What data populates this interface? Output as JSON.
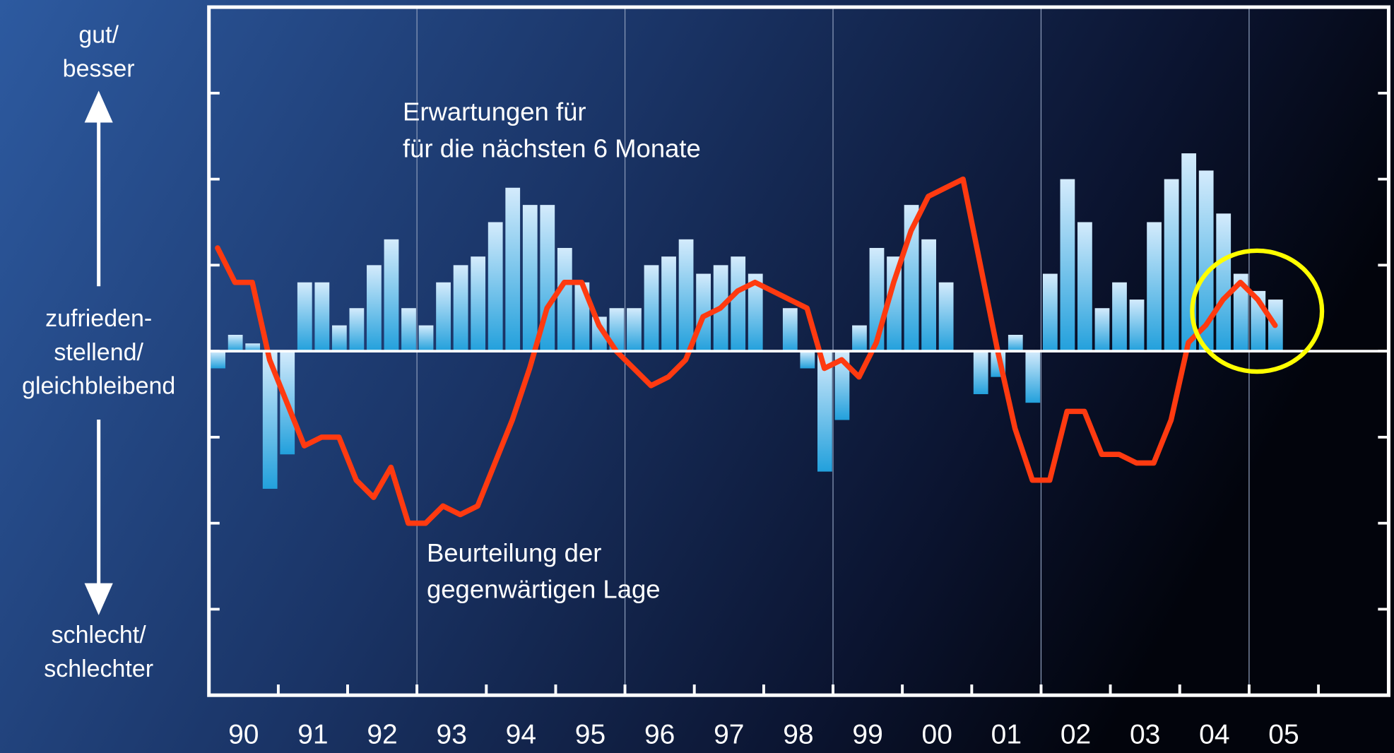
{
  "chart_data": {
    "type": "bar-line",
    "left_labels": {
      "top": [
        "gut/",
        "besser"
      ],
      "middle": [
        "zufrieden-",
        "stellend/",
        "gleichbleibend"
      ],
      "bottom": [
        "schlecht/",
        "schlechter"
      ]
    },
    "annotations": [
      {
        "lines": [
          "Erwartungen für",
          "für die nächsten 6 Monate"
        ]
      },
      {
        "lines": [
          "Beurteilung der",
          "gegenwärtigen Lage"
        ]
      }
    ],
    "categories": [
      "90",
      null,
      null,
      null,
      "91",
      null,
      null,
      null,
      "92",
      null,
      null,
      null,
      "93",
      null,
      null,
      null,
      "94",
      null,
      null,
      null,
      "95",
      null,
      null,
      null,
      "96",
      null,
      null,
      null,
      "97",
      null,
      null,
      null,
      "98",
      null,
      null,
      null,
      "99",
      null,
      null,
      null,
      "00",
      null,
      null,
      null,
      "01",
      null,
      null,
      null,
      "02",
      null,
      null,
      null,
      "03",
      null,
      null,
      null,
      "04",
      null,
      null,
      null,
      "05",
      null
    ],
    "series": [
      {
        "type": "bar",
        "color": "#8ccaf2",
        "values": [
          -0.2,
          0.19,
          0.09,
          -1.6,
          -1.2,
          0.8,
          0.8,
          0.3,
          0.5,
          1.0,
          1.3,
          0.5,
          0.3,
          0.8,
          1.0,
          1.1,
          1.5,
          1.9,
          1.7,
          1.7,
          1.2,
          0.8,
          0.4,
          0.5,
          0.5,
          1.0,
          1.1,
          1.3,
          0.9,
          1.0,
          1.1,
          0.9,
          0,
          0.5,
          -0.2,
          -1.4,
          -0.8,
          0.3,
          1.2,
          1.1,
          1.7,
          1.3,
          0.8,
          0,
          -0.5,
          -0.3,
          0.19,
          -0.6,
          0.9,
          2.0,
          1.5,
          0.5,
          0.8,
          0.6,
          1.5,
          2.0,
          2.3,
          2.1,
          1.6,
          0.9,
          0.7,
          0.6
        ]
      },
      {
        "type": "line",
        "color": "#ff3a10",
        "values": [
          1.2,
          0.8,
          0.8,
          -0.1,
          -0.6,
          -1.1,
          -1.0,
          -1.0,
          -1.5,
          -1.7,
          -1.35,
          -2.0,
          -2.0,
          -1.8,
          -1.9,
          -1.8,
          -1.3,
          -0.8,
          -0.2,
          0.5,
          0.8,
          0.8,
          0.3,
          0,
          -0.2,
          -0.4,
          -0.3,
          -0.1,
          0.4,
          0.5,
          0.7,
          0.8,
          0.7,
          0.6,
          0.5,
          -0.2,
          -0.1,
          -0.3,
          0.1,
          0.8,
          1.4,
          1.8,
          1.9,
          2.0,
          1.0,
          0,
          -0.9,
          -1.5,
          -1.5,
          -0.7,
          -0.7,
          -1.2,
          -1.2,
          -1.3,
          -1.3,
          -0.8,
          0.1,
          0.3,
          0.6,
          0.8,
          0.6,
          0.3
        ]
      }
    ],
    "ylim": [
      -4,
      4
    ],
    "yticks": [
      -3,
      -2,
      -1,
      0,
      1,
      2,
      3
    ],
    "highlight_color": "#ffff00"
  }
}
